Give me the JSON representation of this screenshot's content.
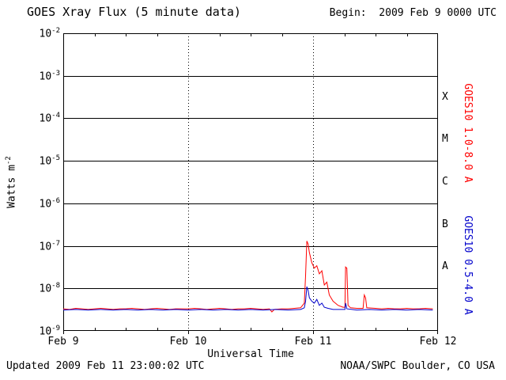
{
  "footer": {
    "updated": "Updated 2009 Feb 11 23:00:02 UTC",
    "source": "NOAA/SWPC Boulder, CO USA"
  },
  "chart_data": {
    "type": "line",
    "title": "GOES Xray Flux (5 minute data)",
    "begin_label": "Begin:  2009 Feb 9 0000 UTC",
    "xlabel": "Universal Time",
    "ylabel": {
      "base": "Watts m",
      "exponent": "-2"
    },
    "x_ticks": [
      "Feb 9",
      "Feb 10",
      "Feb 11",
      "Feb 12"
    ],
    "x_tick_days": [
      0,
      1,
      2,
      3
    ],
    "x_range_days": [
      0,
      3
    ],
    "y_log_range": [
      -9,
      -2
    ],
    "y_tick_exponents": [
      -2,
      -3,
      -4,
      -5,
      -6,
      -7,
      -8,
      -9
    ],
    "grid": {
      "horizontal": "solid black line at every decade",
      "vertical": "dotted black line at each day boundary"
    },
    "flare_classes": [
      {
        "label": "X",
        "between": [
          -4,
          -3
        ]
      },
      {
        "label": "M",
        "between": [
          -5,
          -4
        ]
      },
      {
        "label": "C",
        "between": [
          -6,
          -5
        ]
      },
      {
        "label": "B",
        "between": [
          -7,
          -6
        ]
      },
      {
        "label": "A",
        "between": [
          -8,
          -7
        ]
      }
    ],
    "series": [
      {
        "name": "GOES10 1.0-8.0 A",
        "color": "#ff0000",
        "points": [
          [
            0.0,
            3.3e-09
          ],
          [
            0.05,
            3.2e-09
          ],
          [
            0.1,
            3.4e-09
          ],
          [
            0.15,
            3.3e-09
          ],
          [
            0.2,
            3.2e-09
          ],
          [
            0.25,
            3.3e-09
          ],
          [
            0.3,
            3.4e-09
          ],
          [
            0.35,
            3.3e-09
          ],
          [
            0.4,
            3.2e-09
          ],
          [
            0.45,
            3.3e-09
          ],
          [
            0.5,
            3.3e-09
          ],
          [
            0.55,
            3.4e-09
          ],
          [
            0.6,
            3.3e-09
          ],
          [
            0.65,
            3.2e-09
          ],
          [
            0.7,
            3.3e-09
          ],
          [
            0.75,
            3.4e-09
          ],
          [
            0.8,
            3.3e-09
          ],
          [
            0.85,
            3.2e-09
          ],
          [
            0.9,
            3.3e-09
          ],
          [
            0.95,
            3.3e-09
          ],
          [
            1.0,
            3.3e-09
          ],
          [
            1.05,
            3.4e-09
          ],
          [
            1.1,
            3.3e-09
          ],
          [
            1.15,
            3.2e-09
          ],
          [
            1.2,
            3.3e-09
          ],
          [
            1.25,
            3.4e-09
          ],
          [
            1.3,
            3.3e-09
          ],
          [
            1.35,
            3.2e-09
          ],
          [
            1.4,
            3.3e-09
          ],
          [
            1.45,
            3.3e-09
          ],
          [
            1.5,
            3.4e-09
          ],
          [
            1.55,
            3.3e-09
          ],
          [
            1.6,
            3.2e-09
          ],
          [
            1.65,
            3.3e-09
          ],
          [
            1.67,
            2.8e-09
          ],
          [
            1.69,
            3.2e-09
          ],
          [
            1.75,
            3.3e-09
          ],
          [
            1.8,
            3.3e-09
          ],
          [
            1.85,
            3.4e-09
          ],
          [
            1.9,
            3.5e-09
          ],
          [
            1.93,
            4.5e-09
          ],
          [
            1.94,
            2e-08
          ],
          [
            1.95,
            1.3e-07
          ],
          [
            1.96,
            1.1e-07
          ],
          [
            1.97,
            7e-08
          ],
          [
            1.99,
            4e-08
          ],
          [
            2.01,
            3e-08
          ],
          [
            2.03,
            3.4e-08
          ],
          [
            2.05,
            2.2e-08
          ],
          [
            2.07,
            2.6e-08
          ],
          [
            2.09,
            1.2e-08
          ],
          [
            2.11,
            1.4e-08
          ],
          [
            2.13,
            7e-09
          ],
          [
            2.16,
            5e-09
          ],
          [
            2.2,
            4e-09
          ],
          [
            2.24,
            3.6e-09
          ],
          [
            2.255,
            3.6e-09
          ],
          [
            2.26,
            3.2e-08
          ],
          [
            2.27,
            3e-08
          ],
          [
            2.28,
            4e-09
          ],
          [
            2.3,
            3.5e-09
          ],
          [
            2.35,
            3.4e-09
          ],
          [
            2.4,
            3.4e-09
          ],
          [
            2.41,
            7e-09
          ],
          [
            2.42,
            6e-09
          ],
          [
            2.43,
            3.5e-09
          ],
          [
            2.5,
            3.4e-09
          ],
          [
            2.55,
            3.3e-09
          ],
          [
            2.6,
            3.4e-09
          ],
          [
            2.65,
            3.3e-09
          ],
          [
            2.7,
            3.3e-09
          ],
          [
            2.75,
            3.4e-09
          ],
          [
            2.8,
            3.3e-09
          ],
          [
            2.85,
            3.3e-09
          ],
          [
            2.9,
            3.4e-09
          ],
          [
            2.958,
            3.3e-09
          ]
        ]
      },
      {
        "name": "GOES10 0.5-4.0 A",
        "color": "#0000cc",
        "points": [
          [
            0.0,
            3.1e-09
          ],
          [
            0.1,
            3.2e-09
          ],
          [
            0.2,
            3.1e-09
          ],
          [
            0.3,
            3.2e-09
          ],
          [
            0.4,
            3.1e-09
          ],
          [
            0.5,
            3.2e-09
          ],
          [
            0.6,
            3.1e-09
          ],
          [
            0.7,
            3.2e-09
          ],
          [
            0.8,
            3.1e-09
          ],
          [
            0.9,
            3.2e-09
          ],
          [
            1.0,
            3.1e-09
          ],
          [
            1.1,
            3.2e-09
          ],
          [
            1.2,
            3.1e-09
          ],
          [
            1.3,
            3.2e-09
          ],
          [
            1.4,
            3.1e-09
          ],
          [
            1.5,
            3.2e-09
          ],
          [
            1.6,
            3.1e-09
          ],
          [
            1.7,
            3.2e-09
          ],
          [
            1.8,
            3.1e-09
          ],
          [
            1.9,
            3.2e-09
          ],
          [
            1.93,
            3.5e-09
          ],
          [
            1.94,
            5e-09
          ],
          [
            1.95,
            1.1e-08
          ],
          [
            1.96,
            9e-09
          ],
          [
            1.97,
            6e-09
          ],
          [
            1.99,
            5e-09
          ],
          [
            2.01,
            4.5e-09
          ],
          [
            2.03,
            5.5e-09
          ],
          [
            2.05,
            4e-09
          ],
          [
            2.07,
            4.5e-09
          ],
          [
            2.09,
            3.6e-09
          ],
          [
            2.12,
            3.4e-09
          ],
          [
            2.16,
            3.2e-09
          ],
          [
            2.255,
            3.2e-09
          ],
          [
            2.26,
            4.5e-09
          ],
          [
            2.27,
            3.3e-09
          ],
          [
            2.35,
            3.1e-09
          ],
          [
            2.45,
            3.2e-09
          ],
          [
            2.55,
            3.1e-09
          ],
          [
            2.65,
            3.2e-09
          ],
          [
            2.75,
            3.1e-09
          ],
          [
            2.85,
            3.2e-09
          ],
          [
            2.958,
            3.1e-09
          ]
        ]
      }
    ]
  }
}
